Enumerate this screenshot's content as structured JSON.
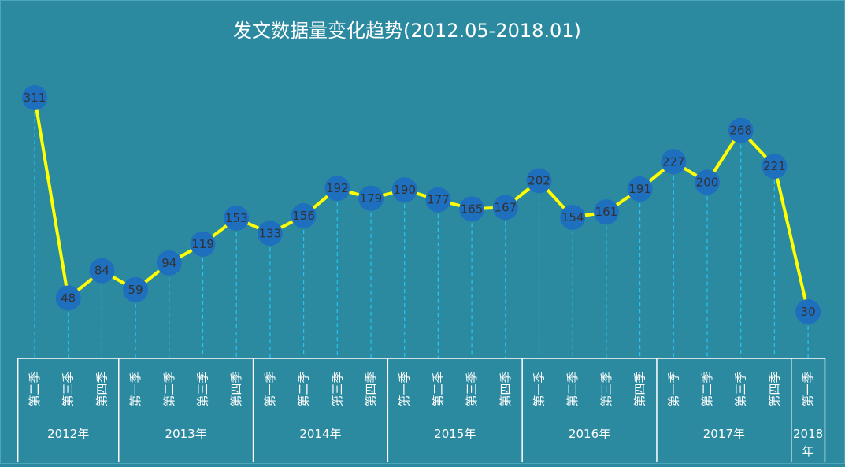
{
  "chart_data": {
    "type": "line",
    "title": "发文数据量变化趋势(2012.05-2018.01)",
    "categories": [
      "第二季",
      "第三季",
      "第四季",
      "第一季",
      "第二季",
      "第三季",
      "第四季",
      "第一季",
      "第二季",
      "第三季",
      "第四季",
      "第一季",
      "第二季",
      "第三季",
      "第四季",
      "第一季",
      "第二季",
      "第三季",
      "第四季",
      "第一季",
      "第二季",
      "第三季",
      "第四季",
      "第一季"
    ],
    "groups": [
      {
        "label": "2012年",
        "count": 3
      },
      {
        "label": "2013年",
        "count": 4
      },
      {
        "label": "2014年",
        "count": 4
      },
      {
        "label": "2015年",
        "count": 4
      },
      {
        "label": "2016年",
        "count": 4
      },
      {
        "label": "2017年",
        "count": 4
      },
      {
        "label": "2018年",
        "count": 1
      }
    ],
    "values": [
      311,
      48,
      84,
      59,
      94,
      119,
      153,
      133,
      156,
      192,
      179,
      190,
      177,
      165,
      167,
      202,
      154,
      161,
      191,
      227,
      200,
      268,
      221,
      30
    ],
    "ylim": [
      0,
      311
    ],
    "grid": false,
    "legend": "none",
    "colors": {
      "background": "#2b8aa0",
      "line": "#ffff00",
      "marker": "#1f6fbf",
      "drop_line": "#27c3f5",
      "axis": "#ffffff",
      "text": "#ffffff",
      "label_text": "#333333"
    }
  }
}
